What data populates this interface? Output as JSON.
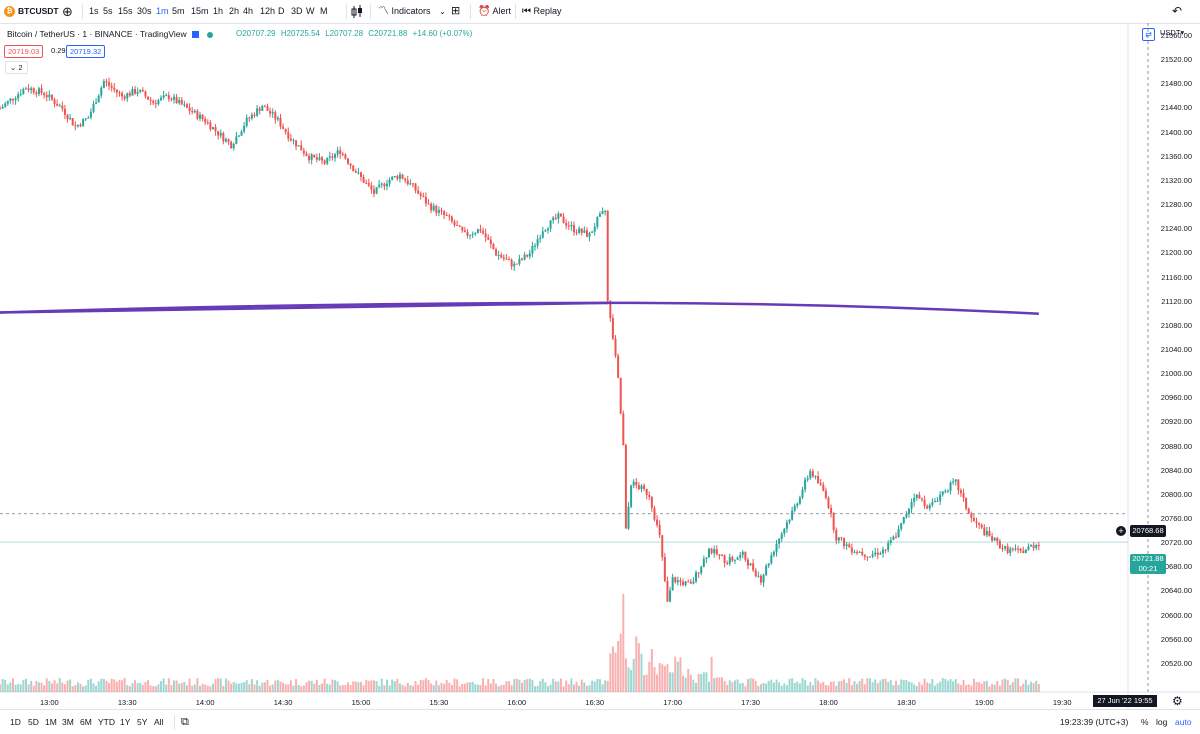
{
  "toolbar": {
    "symbol": "BTCUSDT",
    "intervals": [
      "1s",
      "5s",
      "15s",
      "30s",
      "1m",
      "5m",
      "15m",
      "1h",
      "2h",
      "4h",
      "12h",
      "D",
      "3D",
      "W",
      "M"
    ],
    "active_interval": "1m",
    "indicators_label": "Indicators",
    "alert_label": "Alert",
    "replay_label": "Replay"
  },
  "legend": {
    "title": "Bitcoin / TetherUS · 1 · BINANCE · TradingView",
    "open": "O20707.29",
    "high": "H20725.54",
    "low": "L20707.28",
    "close": "C20721.88",
    "change": "+14.60 (+0.07%)",
    "bid": "20719.03",
    "spread": "0.29",
    "ask": "20719.32",
    "collapse": "2"
  },
  "price_axis": {
    "currency": "USDT",
    "labels": [
      "21560.00",
      "21520.00",
      "21480.00",
      "21440.00",
      "21400.00",
      "21360.00",
      "21320.00",
      "21280.00",
      "21240.00",
      "21200.00",
      "21160.00",
      "21120.00",
      "21080.00",
      "21040.00",
      "21000.00",
      "20960.00",
      "20920.00",
      "20880.00",
      "20840.00",
      "20800.00",
      "20760.00",
      "20720.00",
      "20680.00",
      "20640.00",
      "20600.00",
      "20560.00",
      "20520.00"
    ],
    "crosshair_price": "20768.68",
    "last_price": "20721.88",
    "countdown": "00:21"
  },
  "time_axis": {
    "labels": [
      "13:00",
      "13:30",
      "14:00",
      "14:30",
      "15:00",
      "15:30",
      "16:00",
      "16:30",
      "17:00",
      "17:30",
      "18:00",
      "18:30",
      "19:00",
      "19:30"
    ],
    "crosshair_time": "27 Jun '22   19:55"
  },
  "bottom": {
    "ranges": [
      "1D",
      "5D",
      "1M",
      "3M",
      "6M",
      "YTD",
      "1Y",
      "5Y",
      "All"
    ],
    "clock": "19:23:39 (UTC+3)",
    "pct": "%",
    "log": "log",
    "auto": "auto"
  },
  "colors": {
    "up": "#26a69a",
    "down": "#ef5350",
    "line": "#673ab7",
    "accent": "#2962ff"
  },
  "chart_data": {
    "type": "candlestick",
    "ylim": [
      20500,
      21580
    ],
    "time_range": [
      "12:41",
      "19:33"
    ],
    "ma_line": {
      "x": [
        "12:41",
        "16:35",
        "19:21"
      ],
      "y": [
        21102,
        21118,
        21100
      ]
    },
    "price_path": [
      [
        "12:41",
        21440
      ],
      [
        "12:51",
        21475
      ],
      [
        "12:58",
        21465
      ],
      [
        "13:05",
        21440
      ],
      [
        "13:10",
        21410
      ],
      [
        "13:15",
        21425
      ],
      [
        "13:21",
        21485
      ],
      [
        "13:28",
        21460
      ],
      [
        "13:34",
        21470
      ],
      [
        "13:40",
        21450
      ],
      [
        "13:46",
        21460
      ],
      [
        "13:53",
        21440
      ],
      [
        "14:00",
        21420
      ],
      [
        "14:06",
        21395
      ],
      [
        "14:10",
        21380
      ],
      [
        "14:16",
        21420
      ],
      [
        "14:22",
        21445
      ],
      [
        "14:28",
        21420
      ],
      [
        "14:33",
        21390
      ],
      [
        "14:40",
        21360
      ],
      [
        "14:46",
        21350
      ],
      [
        "14:52",
        21370
      ],
      [
        "14:59",
        21330
      ],
      [
        "15:05",
        21300
      ],
      [
        "15:10",
        21320
      ],
      [
        "15:15",
        21330
      ],
      [
        "15:20",
        21310
      ],
      [
        "15:26",
        21280
      ],
      [
        "15:33",
        21260
      ],
      [
        "15:40",
        21230
      ],
      [
        "15:46",
        21240
      ],
      [
        "15:52",
        21200
      ],
      [
        "15:59",
        21180
      ],
      [
        "16:05",
        21200
      ],
      [
        "16:10",
        21240
      ],
      [
        "16:16",
        21260
      ],
      [
        "16:22",
        21240
      ],
      [
        "16:28",
        21230
      ],
      [
        "16:31",
        21255
      ],
      [
        "16:34",
        21270
      ],
      [
        "16:35",
        21120
      ],
      [
        "16:37",
        21060
      ],
      [
        "16:39",
        20990
      ],
      [
        "16:41",
        20880
      ],
      [
        "16:42",
        20740
      ],
      [
        "16:44",
        20820
      ],
      [
        "16:48",
        20810
      ],
      [
        "16:51",
        20800
      ],
      [
        "16:55",
        20730
      ],
      [
        "16:58",
        20620
      ],
      [
        "17:00",
        20660
      ],
      [
        "17:07",
        20650
      ],
      [
        "17:14",
        20710
      ],
      [
        "17:21",
        20690
      ],
      [
        "17:27",
        20700
      ],
      [
        "17:34",
        20660
      ],
      [
        "17:40",
        20720
      ],
      [
        "17:47",
        20780
      ],
      [
        "17:53",
        20840
      ],
      [
        "17:59",
        20800
      ],
      [
        "18:03",
        20730
      ],
      [
        "18:09",
        20710
      ],
      [
        "18:16",
        20700
      ],
      [
        "18:22",
        20710
      ],
      [
        "18:27",
        20740
      ],
      [
        "18:33",
        20800
      ],
      [
        "18:39",
        20780
      ],
      [
        "18:45",
        20810
      ],
      [
        "18:49",
        20820
      ],
      [
        "18:55",
        20760
      ],
      [
        "19:02",
        20730
      ],
      [
        "19:08",
        20710
      ],
      [
        "19:14",
        20705
      ],
      [
        "19:21",
        20721
      ]
    ],
    "volume": {
      "typical_low": 8,
      "typical_high": 20,
      "spike_time": "16:41",
      "spike_level": 140
    }
  }
}
